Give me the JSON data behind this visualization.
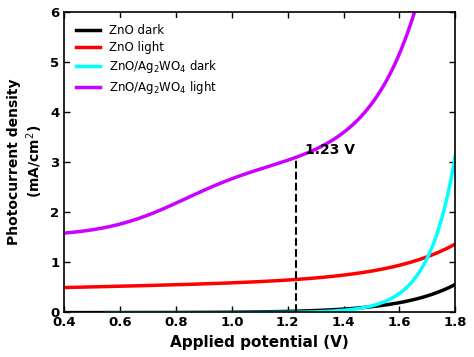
{
  "xlabel": "Applied potential (V)",
  "ylabel": "Photocurrent density (mA/cm$^2$)",
  "xlim": [
    0.4,
    1.8
  ],
  "ylim": [
    0,
    6
  ],
  "xticks": [
    0.4,
    0.6,
    0.8,
    1.0,
    1.2,
    1.4,
    1.6,
    1.8
  ],
  "yticks": [
    0,
    1,
    2,
    3,
    4,
    5,
    6
  ],
  "vline_x": 1.23,
  "vline_label": "1.23 V",
  "legend_entries": [
    "ZnO dark",
    "ZnO light",
    "ZnO/Ag$_2$WO$_4$ dark",
    "ZnO/Ag$_2$WO$_4$ light"
  ],
  "line_colors": [
    "black",
    "red",
    "cyan",
    "#cc00ff"
  ],
  "linewidth": 2.5,
  "background_color": "white"
}
